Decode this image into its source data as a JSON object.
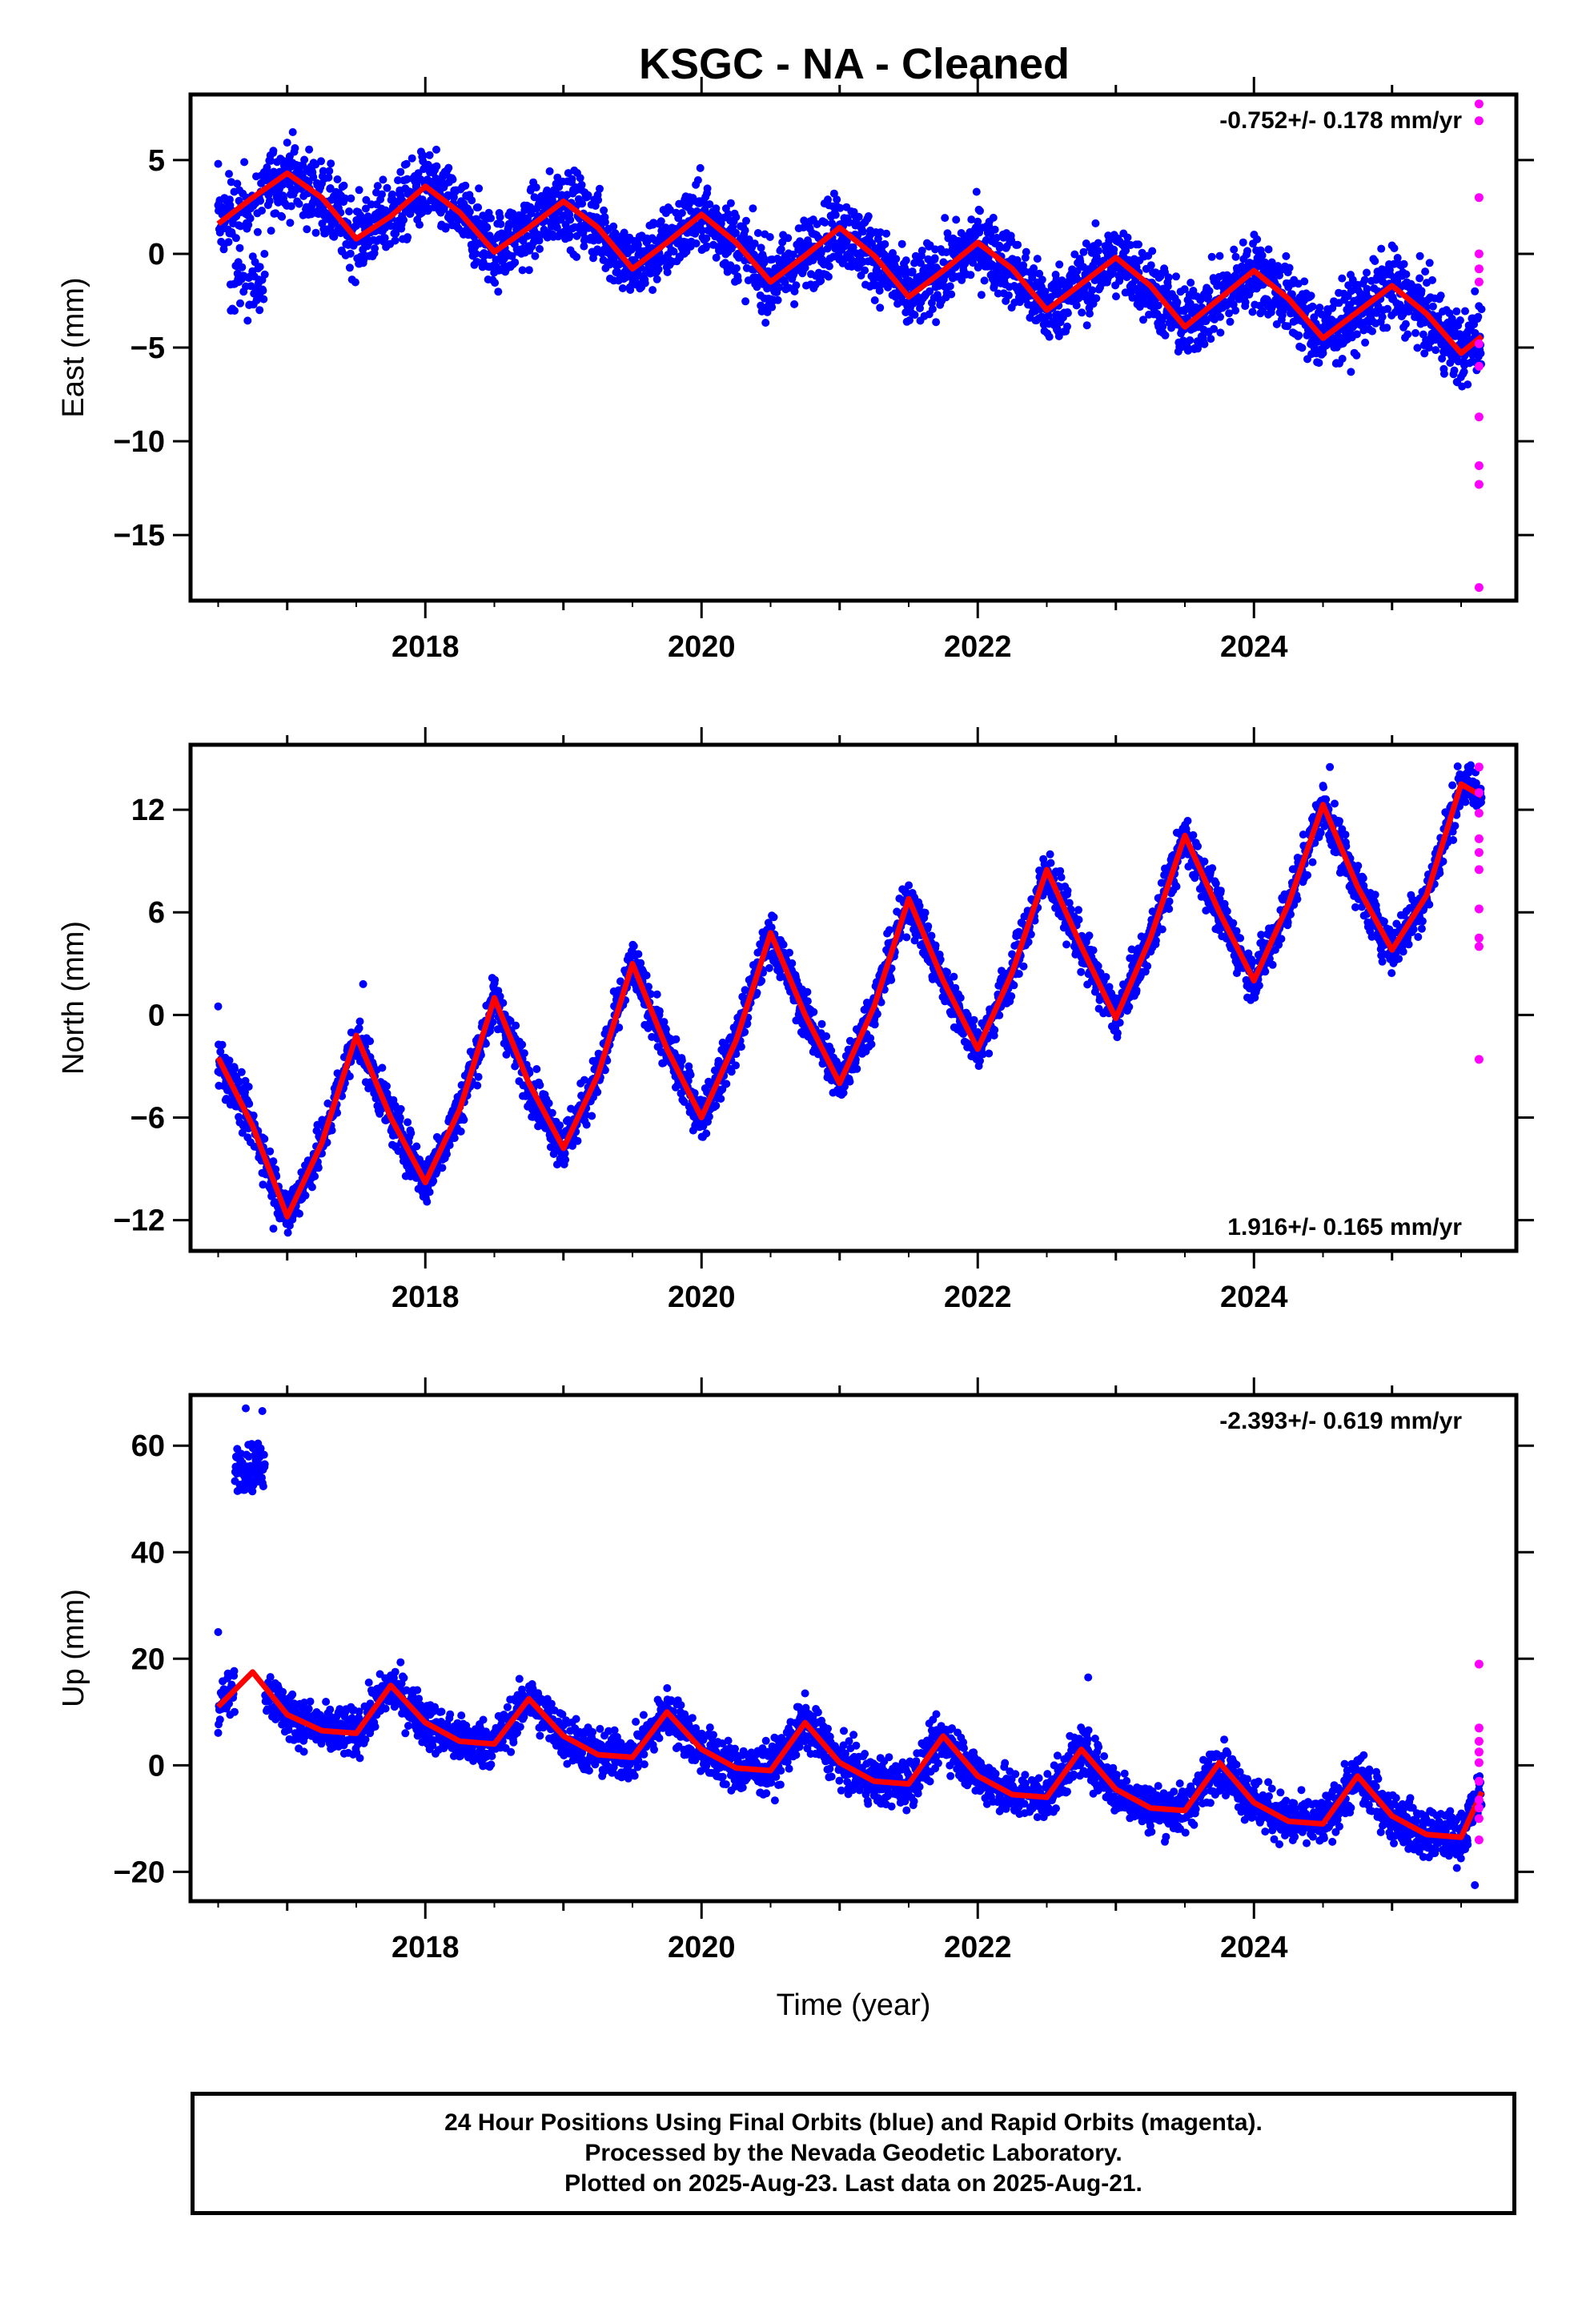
{
  "title": "KSGC  - NA - Cleaned",
  "colors": {
    "final": "#0000ff",
    "rapid": "#ff00ff",
    "model": "#ff0000",
    "frame": "#000000"
  },
  "footer": {
    "lines": [
      "24 Hour Positions Using Final Orbits (blue) and Rapid Orbits (magenta).",
      "Processed by the Nevada Geodetic Laboratory.",
      "Plotted on 2025-Aug-23. Last data on 2025-Aug-21."
    ]
  },
  "chart_data": [
    {
      "type": "scatter",
      "ylabel": "East (mm)",
      "xlabel": "",
      "xlim": [
        2016.3,
        2025.9
      ],
      "ylim": [
        -18.5,
        8.5
      ],
      "xticks": [
        2018,
        2020,
        2022,
        2024
      ],
      "yticks": [
        5,
        0,
        -5,
        -10,
        -15
      ],
      "rate": "-0.752+/- 0.178 mm/yr",
      "rate_position": "top-right",
      "grid": false,
      "series": [
        {
          "kind": "model",
          "x": [
            2016.5,
            2016.75,
            2017.0,
            2017.25,
            2017.5,
            2017.75,
            2018.0,
            2018.25,
            2018.5,
            2018.75,
            2019.0,
            2019.25,
            2019.5,
            2019.75,
            2020.0,
            2020.25,
            2020.5,
            2020.75,
            2021.0,
            2021.25,
            2021.5,
            2021.75,
            2022.0,
            2022.25,
            2022.5,
            2022.75,
            2023.0,
            2023.25,
            2023.5,
            2023.75,
            2024.0,
            2024.25,
            2024.5,
            2024.75,
            2025.0,
            2025.25,
            2025.5,
            2025.65
          ],
          "values": [
            1.6,
            3.0,
            4.3,
            3.0,
            0.8,
            2.0,
            3.6,
            2.2,
            0.1,
            1.4,
            2.8,
            1.4,
            -0.8,
            0.6,
            2.1,
            0.6,
            -1.5,
            -0.1,
            1.4,
            -0.1,
            -2.3,
            -0.9,
            0.6,
            -0.8,
            -3.0,
            -1.6,
            -0.2,
            -1.7,
            -3.9,
            -2.4,
            -0.9,
            -2.4,
            -4.5,
            -3.1,
            -1.7,
            -3.2,
            -5.3,
            -4.4
          ]
        },
        {
          "kind": "final_anchor",
          "x": [
            2016.5,
            2016.65,
            2016.8,
            2025.5,
            2025.6
          ],
          "values": [
            4.8,
            -1.5,
            -3.0,
            -4.5,
            -2.0
          ]
        },
        {
          "kind": "rapid",
          "x": [
            2025.63,
            2025.63,
            2025.63,
            2025.63,
            2025.63,
            2025.63,
            2025.63,
            2025.63,
            2025.63,
            2025.63,
            2025.63,
            2025.63
          ],
          "values": [
            8.0,
            7.1,
            3.0,
            0.0,
            -0.8,
            -1.5,
            -4.8,
            -6.0,
            -8.7,
            -11.3,
            -12.3,
            -17.8
          ]
        }
      ]
    },
    {
      "type": "scatter",
      "ylabel": "North (mm)",
      "xlabel": "",
      "xlim": [
        2016.3,
        2025.9
      ],
      "ylim": [
        -13.8,
        15.8
      ],
      "xticks": [
        2018,
        2020,
        2022,
        2024
      ],
      "yticks": [
        12,
        6,
        0,
        -6,
        -12
      ],
      "rate": "1.916+/- 0.165 mm/yr",
      "rate_position": "bottom-right",
      "grid": false,
      "series": [
        {
          "kind": "model",
          "x": [
            2016.5,
            2016.75,
            2017.0,
            2017.25,
            2017.5,
            2017.75,
            2018.0,
            2018.25,
            2018.5,
            2018.75,
            2019.0,
            2019.25,
            2019.5,
            2019.75,
            2020.0,
            2020.25,
            2020.5,
            2020.75,
            2021.0,
            2021.25,
            2021.5,
            2021.75,
            2022.0,
            2022.25,
            2022.5,
            2022.75,
            2023.0,
            2023.25,
            2023.5,
            2023.75,
            2024.0,
            2024.25,
            2024.5,
            2024.75,
            2025.0,
            2025.25,
            2025.5,
            2025.65
          ],
          "values": [
            -2.5,
            -6.5,
            -11.8,
            -7.5,
            -1.2,
            -6.0,
            -9.8,
            -5.5,
            1.0,
            -4.0,
            -7.8,
            -3.5,
            3.0,
            -2.0,
            -6.0,
            -1.5,
            4.8,
            0.0,
            -4.0,
            0.5,
            6.8,
            2.0,
            -2.0,
            2.5,
            8.5,
            4.0,
            -0.2,
            4.5,
            10.5,
            6.0,
            2.0,
            6.5,
            12.3,
            7.5,
            3.8,
            7.0,
            13.5,
            12.8
          ]
        },
        {
          "kind": "final_anchor",
          "x": [
            2016.5,
            2016.9,
            2017.55,
            2024.55,
            2025.55
          ],
          "values": [
            0.5,
            -12.5,
            1.8,
            14.5,
            14.5
          ]
        },
        {
          "kind": "rapid",
          "x": [
            2025.63,
            2025.63,
            2025.63,
            2025.63,
            2025.63,
            2025.63,
            2025.63,
            2025.63,
            2025.63,
            2025.63
          ],
          "values": [
            14.5,
            13.0,
            11.8,
            10.3,
            9.5,
            8.5,
            6.2,
            4.5,
            4.0,
            -2.6
          ]
        }
      ]
    },
    {
      "type": "scatter",
      "ylabel": "Up (mm)",
      "xlabel": "Time (year)",
      "xlim": [
        2016.3,
        2025.9
      ],
      "ylim": [
        -25.5,
        69.5
      ],
      "xticks": [
        2018,
        2020,
        2022,
        2024
      ],
      "yticks": [
        60,
        40,
        20,
        0,
        -20
      ],
      "rate": "-2.393+/- 0.619 mm/yr",
      "rate_position": "top-right",
      "grid": false,
      "series": [
        {
          "kind": "model",
          "x": [
            2016.5,
            2016.75,
            2017.0,
            2017.25,
            2017.5,
            2017.75,
            2018.0,
            2018.25,
            2018.5,
            2018.75,
            2019.0,
            2019.25,
            2019.5,
            2019.75,
            2020.0,
            2020.25,
            2020.5,
            2020.75,
            2021.0,
            2021.25,
            2021.5,
            2021.75,
            2022.0,
            2022.25,
            2022.5,
            2022.75,
            2023.0,
            2023.25,
            2023.5,
            2023.75,
            2024.0,
            2024.25,
            2024.5,
            2024.75,
            2025.0,
            2025.25,
            2025.5,
            2025.65
          ],
          "values": [
            11.0,
            17.5,
            9.5,
            6.5,
            6.0,
            15.0,
            8.0,
            4.5,
            4.0,
            12.5,
            5.5,
            2.0,
            1.5,
            10.0,
            3.0,
            -0.5,
            -1.0,
            8.0,
            0.5,
            -3.0,
            -3.5,
            5.5,
            -2.0,
            -5.5,
            -6.0,
            3.0,
            -4.5,
            -8.0,
            -8.5,
            0.5,
            -7.0,
            -10.5,
            -11.0,
            -2.0,
            -9.5,
            -13.0,
            -13.5,
            -5.0
          ]
        },
        {
          "kind": "final_anchor",
          "x": [
            2016.5,
            2016.7,
            2016.82,
            2022.8,
            2025.6
          ],
          "values": [
            25.0,
            67.0,
            66.5,
            16.5,
            -22.5
          ]
        },
        {
          "kind": "rapid",
          "x": [
            2025.63,
            2025.63,
            2025.63,
            2025.63,
            2025.63,
            2025.63,
            2025.63,
            2025.63,
            2025.63,
            2025.63
          ],
          "values": [
            19.0,
            7.0,
            4.5,
            2.5,
            0.5,
            -3.0,
            -6.5,
            -8.0,
            -10.0,
            -14.0
          ]
        }
      ]
    }
  ]
}
